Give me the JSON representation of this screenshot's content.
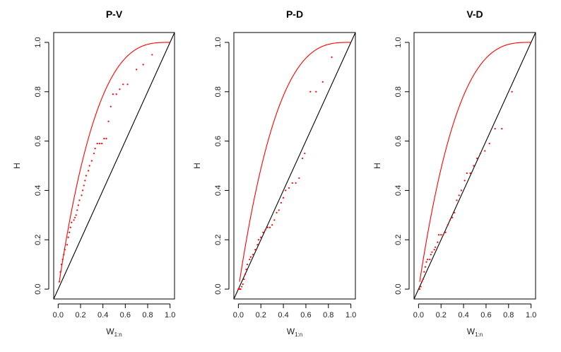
{
  "chart_data": [
    {
      "type": "scatter",
      "title": "P-V",
      "xlabel_main": "W",
      "xlabel_sub": "1:n",
      "ylabel": "H",
      "xlim": [
        -0.04,
        1.04
      ],
      "ylim": [
        -0.04,
        1.04
      ],
      "xticks": [
        "0.0",
        "0.2",
        "0.4",
        "0.6",
        "0.8",
        "1.0"
      ],
      "yticks": [
        "0.0",
        "0.2",
        "0.4",
        "0.6",
        "0.8",
        "1.0"
      ],
      "grid": false,
      "reference_lines": [
        "diagonal",
        "upper_bound_curve"
      ],
      "series": [
        {
          "color": "#ff0000",
          "points": [
            [
              0.01,
              0.03
            ],
            [
              0.02,
              0.07
            ],
            [
              0.03,
              0.1
            ],
            [
              0.04,
              0.12
            ],
            [
              0.05,
              0.14
            ],
            [
              0.06,
              0.16
            ],
            [
              0.08,
              0.18
            ],
            [
              0.09,
              0.21
            ],
            [
              0.1,
              0.23
            ],
            [
              0.11,
              0.25
            ],
            [
              0.12,
              0.27
            ],
            [
              0.14,
              0.28
            ],
            [
              0.15,
              0.29
            ],
            [
              0.16,
              0.3
            ],
            [
              0.17,
              0.32
            ],
            [
              0.18,
              0.34
            ],
            [
              0.19,
              0.36
            ],
            [
              0.21,
              0.38
            ],
            [
              0.22,
              0.4
            ],
            [
              0.23,
              0.42
            ],
            [
              0.24,
              0.44
            ],
            [
              0.25,
              0.46
            ],
            [
              0.27,
              0.48
            ],
            [
              0.28,
              0.5
            ],
            [
              0.3,
              0.52
            ],
            [
              0.32,
              0.55
            ],
            [
              0.33,
              0.57
            ],
            [
              0.35,
              0.59
            ],
            [
              0.37,
              0.59
            ],
            [
              0.39,
              0.59
            ],
            [
              0.41,
              0.61
            ],
            [
              0.43,
              0.61
            ],
            [
              0.45,
              0.68
            ],
            [
              0.47,
              0.74
            ],
            [
              0.49,
              0.79
            ],
            [
              0.52,
              0.79
            ],
            [
              0.55,
              0.81
            ],
            [
              0.58,
              0.83
            ],
            [
              0.62,
              0.83
            ],
            [
              0.7,
              0.89
            ],
            [
              0.76,
              0.91
            ],
            [
              0.84,
              0.95
            ]
          ]
        }
      ]
    },
    {
      "type": "scatter",
      "title": "P-D",
      "xlabel_main": "W",
      "xlabel_sub": "1:n",
      "ylabel": "H",
      "xlim": [
        -0.04,
        1.04
      ],
      "ylim": [
        -0.04,
        1.04
      ],
      "xticks": [
        "0.0",
        "0.2",
        "0.4",
        "0.6",
        "0.8",
        "1.0"
      ],
      "yticks": [
        "0.0",
        "0.2",
        "0.4",
        "0.6",
        "0.8",
        "1.0"
      ],
      "grid": false,
      "reference_lines": [
        "diagonal",
        "upper_bound_curve"
      ],
      "series": [
        {
          "color": "#ff0000",
          "points": [
            [
              0.0,
              0.0
            ],
            [
              0.01,
              0.0
            ],
            [
              0.02,
              0.0
            ],
            [
              0.03,
              0.01
            ],
            [
              0.04,
              0.02
            ],
            [
              0.05,
              0.04
            ],
            [
              0.06,
              0.06
            ],
            [
              0.07,
              0.08
            ],
            [
              0.08,
              0.1
            ],
            [
              0.1,
              0.12
            ],
            [
              0.11,
              0.13
            ],
            [
              0.13,
              0.14
            ],
            [
              0.15,
              0.16
            ],
            [
              0.17,
              0.18
            ],
            [
              0.18,
              0.2
            ],
            [
              0.2,
              0.21
            ],
            [
              0.22,
              0.23
            ],
            [
              0.24,
              0.24
            ],
            [
              0.26,
              0.25
            ],
            [
              0.28,
              0.25
            ],
            [
              0.3,
              0.26
            ],
            [
              0.32,
              0.28
            ],
            [
              0.34,
              0.31
            ],
            [
              0.36,
              0.32
            ],
            [
              0.38,
              0.35
            ],
            [
              0.4,
              0.37
            ],
            [
              0.42,
              0.4
            ],
            [
              0.45,
              0.41
            ],
            [
              0.48,
              0.43
            ],
            [
              0.51,
              0.43
            ],
            [
              0.54,
              0.45
            ],
            [
              0.57,
              0.53
            ],
            [
              0.59,
              0.55
            ],
            [
              0.64,
              0.8
            ],
            [
              0.69,
              0.8
            ],
            [
              0.75,
              0.84
            ],
            [
              0.83,
              0.94
            ]
          ]
        }
      ]
    },
    {
      "type": "scatter",
      "title": "V-D",
      "xlabel_main": "W",
      "xlabel_sub": "1:n",
      "ylabel": "H",
      "xlim": [
        -0.04,
        1.04
      ],
      "ylim": [
        -0.04,
        1.04
      ],
      "xticks": [
        "0.0",
        "0.2",
        "0.4",
        "0.6",
        "0.8",
        "1.0"
      ],
      "yticks": [
        "0.0",
        "0.2",
        "0.4",
        "0.6",
        "0.8",
        "1.0"
      ],
      "grid": false,
      "reference_lines": [
        "diagonal",
        "upper_bound_curve"
      ],
      "series": [
        {
          "color": "#ff0000",
          "points": [
            [
              0.01,
              0.0
            ],
            [
              0.02,
              0.01
            ],
            [
              0.03,
              0.03
            ],
            [
              0.04,
              0.04
            ],
            [
              0.05,
              0.07
            ],
            [
              0.06,
              0.09
            ],
            [
              0.07,
              0.11
            ],
            [
              0.08,
              0.12
            ],
            [
              0.1,
              0.12
            ],
            [
              0.11,
              0.14
            ],
            [
              0.12,
              0.15
            ],
            [
              0.14,
              0.16
            ],
            [
              0.15,
              0.17
            ],
            [
              0.17,
              0.19
            ],
            [
              0.18,
              0.22
            ],
            [
              0.2,
              0.22
            ],
            [
              0.22,
              0.22
            ],
            [
              0.24,
              0.23
            ],
            [
              0.26,
              0.26
            ],
            [
              0.28,
              0.28
            ],
            [
              0.3,
              0.29
            ],
            [
              0.32,
              0.31
            ],
            [
              0.34,
              0.36
            ],
            [
              0.36,
              0.38
            ],
            [
              0.38,
              0.4
            ],
            [
              0.41,
              0.44
            ],
            [
              0.43,
              0.47
            ],
            [
              0.46,
              0.47
            ],
            [
              0.49,
              0.5
            ],
            [
              0.52,
              0.53
            ],
            [
              0.55,
              0.55
            ],
            [
              0.59,
              0.56
            ],
            [
              0.63,
              0.59
            ],
            [
              0.68,
              0.65
            ],
            [
              0.74,
              0.65
            ],
            [
              0.83,
              0.8
            ]
          ]
        }
      ]
    }
  ]
}
